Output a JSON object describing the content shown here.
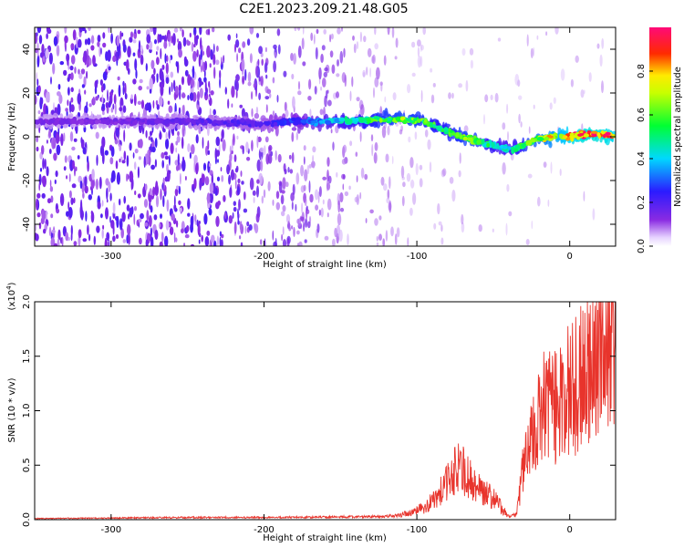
{
  "title": "C2E1.2023.209.21.48.G05",
  "chart_data": [
    {
      "type": "heatmap",
      "xlabel": "Height of straight line (km)",
      "ylabel": "Frequency (Hz)",
      "xlim": [
        -350,
        30
      ],
      "ylim": [
        -50,
        50
      ],
      "xticks": [
        -300,
        -200,
        -100,
        0
      ],
      "yticks": [
        -40,
        -20,
        0,
        20,
        40
      ],
      "colorbar": {
        "label": "Normalized spectral amplitude",
        "ticks": [
          "0.0",
          "0.2",
          "0.4",
          "0.6",
          "0.8"
        ],
        "range": [
          0,
          1
        ],
        "colormap": "white-purple-blue-cyan-green-yellow-red-magenta"
      },
      "ridge": {
        "x": [
          -340,
          -300,
          -250,
          -200,
          -175,
          -150,
          -125,
          -110,
          -95,
          -85,
          -75,
          -65,
          -55,
          -45,
          -38,
          -30,
          -20,
          -10,
          0,
          10,
          20,
          30
        ],
        "frequency_hz": [
          7,
          7,
          7,
          6,
          7,
          7,
          8,
          8,
          7,
          4,
          1,
          -1,
          -3,
          -5,
          -6,
          -4,
          -1,
          0,
          0,
          1,
          1,
          0
        ],
        "amplitude": [
          0.15,
          0.15,
          0.18,
          0.22,
          0.3,
          0.45,
          0.6,
          0.65,
          0.6,
          0.55,
          0.6,
          0.65,
          0.55,
          0.45,
          0.45,
          0.6,
          0.7,
          0.8,
          0.9,
          0.95,
          0.95,
          0.9
        ]
      }
    },
    {
      "type": "line",
      "xlabel": "Height of straight line (km)",
      "ylabel": "SNR (10 * v/v)",
      "scale_label_base": "(x10",
      "scale_label_exp": "4",
      "scale_label_close": ")",
      "xlim": [
        -350,
        30
      ],
      "ylim": [
        0,
        2.0
      ],
      "xticks": [
        -300,
        -200,
        -100,
        0
      ],
      "yticks": [
        "0.0",
        "0.5",
        "1.0",
        "1.5",
        "2.0"
      ],
      "color": "#e8342c",
      "series": [
        {
          "x": [
            -350,
            -300,
            -250,
            -200,
            -150,
            -120,
            -105,
            -95,
            -88,
            -82,
            -75,
            -70,
            -65,
            -60,
            -55,
            -50,
            -45,
            -40,
            -35,
            -30,
            -25,
            -20,
            -15,
            -10,
            -5,
            0,
            5,
            10,
            15,
            20,
            25,
            30
          ],
          "values": [
            0.01,
            0.015,
            0.02,
            0.02,
            0.025,
            0.03,
            0.06,
            0.12,
            0.2,
            0.32,
            0.48,
            0.5,
            0.38,
            0.32,
            0.26,
            0.22,
            0.12,
            0.03,
            0.05,
            0.55,
            0.75,
            0.95,
            1.15,
            1.1,
            1.2,
            1.25,
            1.3,
            1.45,
            1.6,
            1.75,
            1.85,
            1.9
          ]
        }
      ]
    }
  ]
}
